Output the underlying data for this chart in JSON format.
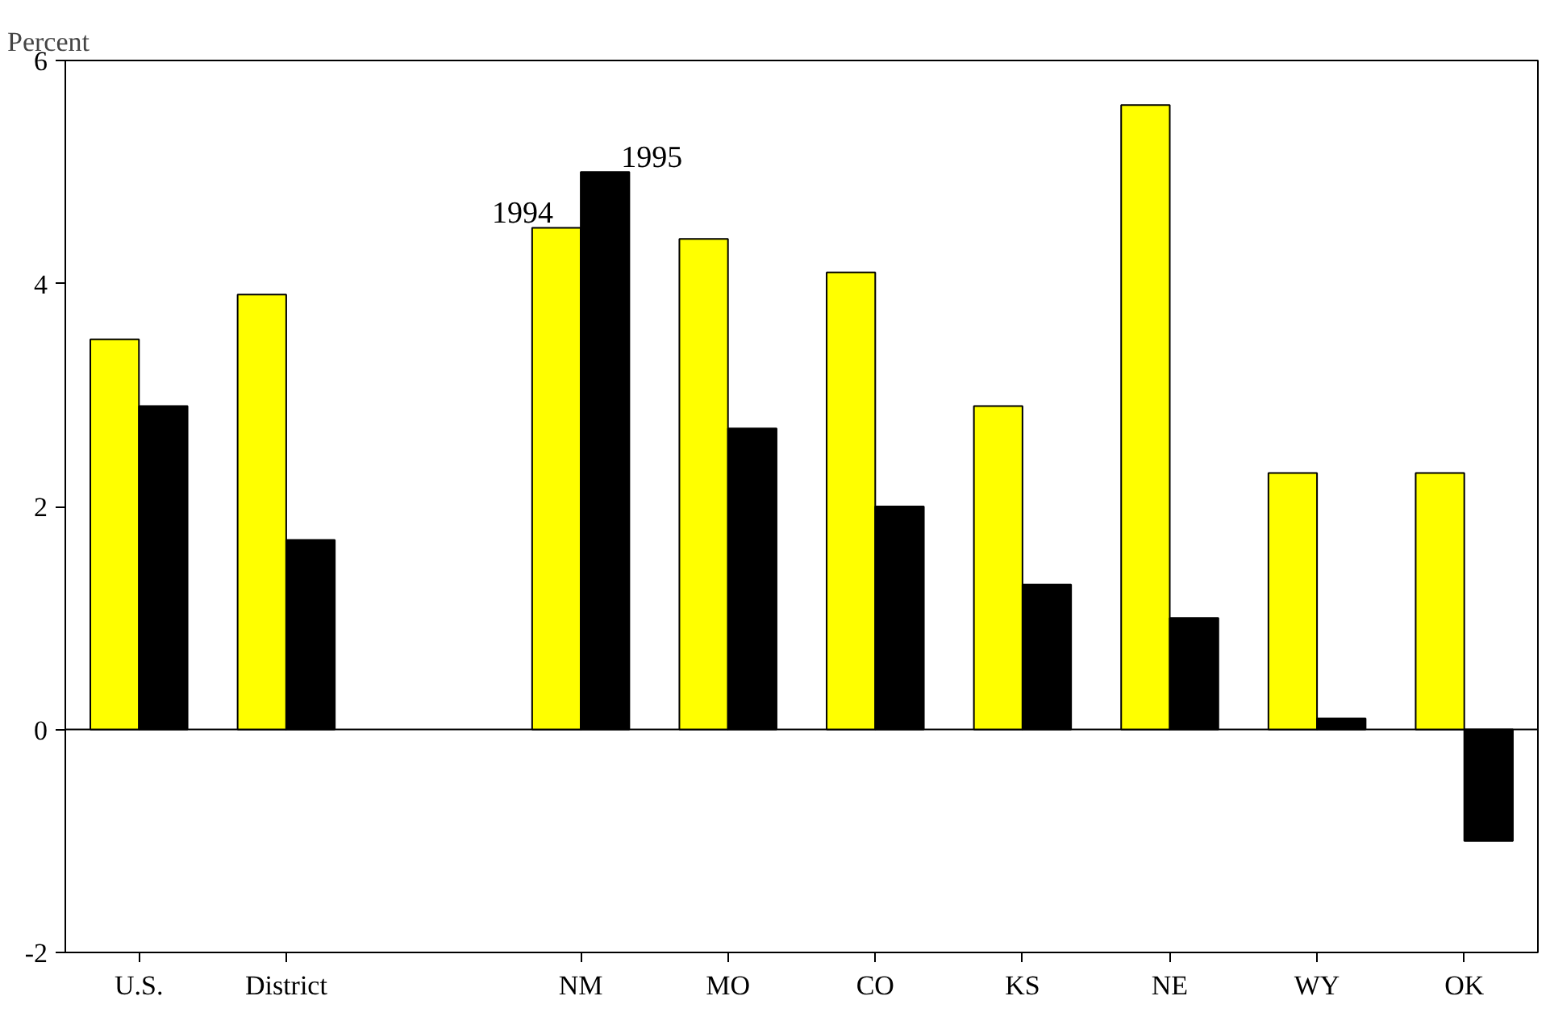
{
  "chart_data": {
    "type": "bar",
    "ylabel": "Percent",
    "categories": [
      "U.S.",
      "District",
      null,
      "NM",
      "MO",
      "CO",
      "KS",
      "NE",
      "WY",
      "OK"
    ],
    "series": [
      {
        "name": "1994",
        "color": "#ffff00",
        "values": [
          3.5,
          3.9,
          null,
          4.5,
          4.4,
          4.1,
          2.9,
          5.6,
          2.3,
          2.3
        ]
      },
      {
        "name": "1995",
        "color": "#000000",
        "values": [
          2.9,
          1.7,
          null,
          5.0,
          2.7,
          2.0,
          1.3,
          1.0,
          0.1,
          -1.0
        ]
      }
    ],
    "ylim": [
      -2,
      6
    ],
    "yticks": [
      -2,
      0,
      2,
      4,
      6
    ]
  }
}
